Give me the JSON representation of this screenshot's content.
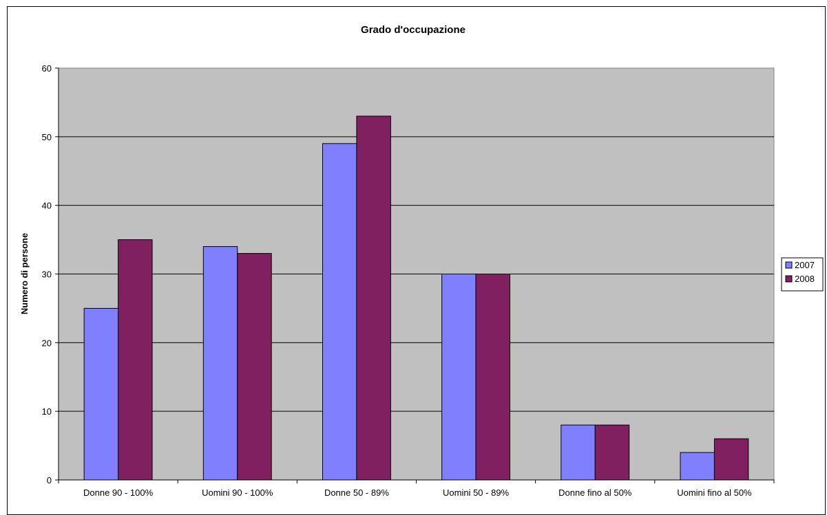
{
  "chart_data": {
    "type": "bar",
    "title": "Grado d'occupazione",
    "xlabel": "",
    "ylabel": "Numero di persone",
    "categories": [
      "Donne 90 - 100%",
      "Uomini 90 - 100%",
      "Donne 50 - 89%",
      "Uomini 50 - 89%",
      "Donne fino al 50%",
      "Uomini fino al 50%"
    ],
    "series": [
      {
        "name": "2007",
        "color": "#8080FF",
        "values": [
          25,
          34,
          49,
          30,
          8,
          4
        ]
      },
      {
        "name": "2008",
        "color": "#802060",
        "values": [
          35,
          33,
          53,
          30,
          8,
          6
        ]
      }
    ],
    "ylim": [
      0,
      60
    ],
    "yticks": [
      0,
      10,
      20,
      30,
      40,
      50,
      60
    ],
    "grid": true,
    "plot_background": "#C0C0C0",
    "legend_position": "right"
  }
}
